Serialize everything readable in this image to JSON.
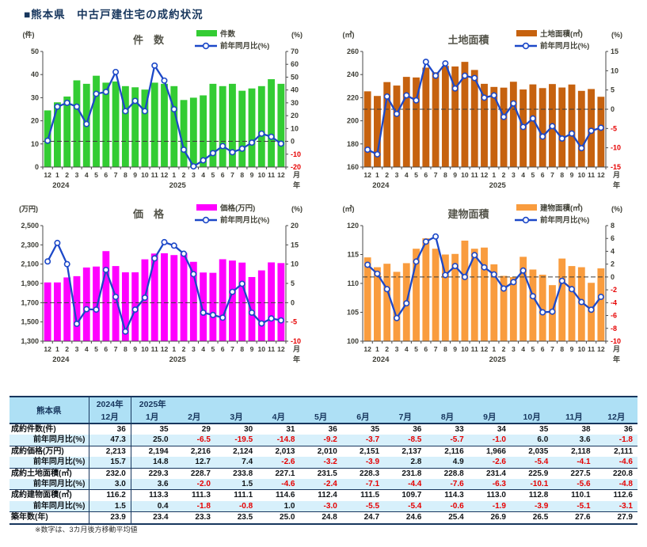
{
  "page": {
    "title": "■熊本県　中古戸建住宅の成約状況",
    "footnote": "※数字は、3カ月後方移動平均値"
  },
  "colors": {
    "navy_text": "#17365d",
    "negative_red": "#e60000",
    "line_blue": "#1c48c8",
    "axis_text": "#3d3d35",
    "chart_title": "#54544a",
    "header_bg": "#aee0f5",
    "shaded_row_bg": "#d7f0fb",
    "bar_count_green": "#33cc33",
    "bar_land_brown": "#c6620f",
    "bar_price_magenta": "#ff00ff",
    "bar_building_orange": "#f99c3e"
  },
  "axis": {
    "month_suffix": "月",
    "year_suffix": "年"
  },
  "months": [
    "12",
    "1",
    "2",
    "3",
    "4",
    "5",
    "6",
    "7",
    "8",
    "9",
    "10",
    "11",
    "12",
    "1",
    "2",
    "3",
    "4",
    "5",
    "6",
    "7",
    "8",
    "9",
    "10",
    "11",
    "12"
  ],
  "years": [
    {
      "index": 1,
      "label": "2024"
    },
    {
      "index": 13,
      "label": "2025"
    }
  ],
  "chart_data": [
    {
      "type": "bar",
      "combo": "bar+line",
      "title": "件　数",
      "unit_left": "(件)",
      "unit_right": "(%)",
      "legend": [
        "件数",
        "前年同月比(%)"
      ],
      "legend_position": "top-right",
      "bar_color": "#33cc33",
      "ylim_left": [
        0,
        50
      ],
      "yticks_left": [
        [
          0,
          "0"
        ],
        [
          10,
          "10"
        ],
        [
          20,
          "20"
        ],
        [
          30,
          "30"
        ],
        [
          40,
          "40"
        ],
        [
          50,
          "50"
        ]
      ],
      "ylim_right": [
        -20,
        70
      ],
      "yticks_right": [
        [
          -20,
          "-20"
        ],
        [
          -10,
          "-10"
        ],
        [
          0,
          "0"
        ],
        [
          10,
          "10"
        ],
        [
          20,
          "20"
        ],
        [
          30,
          "30"
        ],
        [
          40,
          "40"
        ],
        [
          50,
          "50"
        ],
        [
          60,
          "60"
        ],
        [
          70,
          "70"
        ]
      ],
      "bars": [
        24.5,
        28,
        30.5,
        37.5,
        36,
        39.5,
        36.5,
        37,
        35,
        34.5,
        33.5,
        36.5,
        36,
        35,
        29,
        30,
        31,
        36,
        35,
        36,
        33,
        34,
        35,
        38,
        36
      ],
      "line": [
        0.5,
        27,
        30,
        27,
        13.5,
        37,
        38.5,
        54,
        23.5,
        31.5,
        23.5,
        59,
        47.3,
        25.0,
        -6.5,
        -19.5,
        -14.8,
        -9.2,
        -3.7,
        -8.5,
        -5.7,
        -1.0,
        6.0,
        3.6,
        -1.8
      ]
    },
    {
      "type": "bar",
      "combo": "bar+line",
      "title": "土地面積",
      "unit_left": "(㎡)",
      "unit_right": "(%)",
      "legend": [
        "土地面積(㎡)",
        "前年同月比(%)"
      ],
      "legend_position": "top-right",
      "bar_color": "#c6620f",
      "ylim_left": [
        160,
        260
      ],
      "yticks_left": [
        [
          160,
          "160"
        ],
        [
          180,
          "180"
        ],
        [
          200,
          "200"
        ],
        [
          220,
          "220"
        ],
        [
          240,
          "240"
        ],
        [
          260,
          "260"
        ]
      ],
      "ylim_right": [
        -15,
        15
      ],
      "yticks_right": [
        [
          -15,
          "-15"
        ],
        [
          -10,
          "-10"
        ],
        [
          -5,
          "-5"
        ],
        [
          0,
          "0"
        ],
        [
          5,
          "5"
        ],
        [
          10,
          "10"
        ],
        [
          15,
          "15"
        ]
      ],
      "bars": [
        225.5,
        221.5,
        233.5,
        230.5,
        238,
        237.5,
        246,
        242,
        247.5,
        247,
        251,
        244,
        232.0,
        229.3,
        228.7,
        233.8,
        227.1,
        231.5,
        228.3,
        231.8,
        228.8,
        231.4,
        225.9,
        227.5,
        220.8
      ],
      "line": [
        -10.5,
        -11.7,
        3.3,
        -1.2,
        3.6,
        2.3,
        12.3,
        8.7,
        11.9,
        5.4,
        8.7,
        8.1,
        3.0,
        3.6,
        -2.0,
        1.5,
        -4.6,
        -2.4,
        -7.1,
        -4.4,
        -7.6,
        -6.3,
        -10.1,
        -5.6,
        -4.8
      ]
    },
    {
      "type": "bar",
      "combo": "bar+line",
      "title": "価　格",
      "unit_left": "(万円)",
      "unit_right": "(%)",
      "legend": [
        "価格(万円)",
        "前年同月比(%)"
      ],
      "legend_position": "top-right",
      "bar_color": "#ff00ff",
      "ylim_left": [
        1300,
        2500
      ],
      "yticks_left": [
        [
          1300,
          "1,300"
        ],
        [
          1500,
          "1,500"
        ],
        [
          1700,
          "1,700"
        ],
        [
          1900,
          "1,900"
        ],
        [
          2100,
          "2,100"
        ],
        [
          2300,
          "2,300"
        ],
        [
          2500,
          "2,500"
        ]
      ],
      "ylim_right": [
        -10,
        20
      ],
      "yticks_right": [
        [
          -10,
          "-10"
        ],
        [
          -5,
          "-5"
        ],
        [
          0,
          "0"
        ],
        [
          5,
          "5"
        ],
        [
          10,
          "10"
        ],
        [
          15,
          "15"
        ],
        [
          20,
          "20"
        ]
      ],
      "bars": [
        1910,
        1910,
        1962,
        1975,
        2065,
        2075,
        2235,
        2080,
        2015,
        2015,
        2150,
        2210,
        2213,
        2194,
        2216,
        2124,
        2013,
        2010,
        2151,
        2137,
        2116,
        1966,
        2035,
        2118,
        2111
      ],
      "line": [
        10.7,
        15.5,
        10,
        -5.5,
        -1.7,
        -1.8,
        8.5,
        1.5,
        -7.5,
        -1.8,
        1.3,
        11.5,
        15.7,
        14.8,
        12.7,
        7.4,
        -2.6,
        -3.2,
        -3.9,
        2.8,
        4.9,
        -2.6,
        -5.4,
        -4.1,
        -4.6
      ]
    },
    {
      "type": "bar",
      "combo": "bar+line",
      "title": "建物面積",
      "unit_left": "(㎡)",
      "unit_right": "(%)",
      "legend": [
        "建物面積(㎡)",
        "前年同月比(%)"
      ],
      "legend_position": "top-right",
      "bar_color": "#f99c3e",
      "ylim_left": [
        100,
        120
      ],
      "yticks_left": [
        [
          100,
          "100"
        ],
        [
          105,
          "105"
        ],
        [
          110,
          "110"
        ],
        [
          115,
          "115"
        ],
        [
          120,
          "120"
        ]
      ],
      "ylim_right": [
        -10,
        8
      ],
      "yticks_right": [
        [
          -10,
          "-10"
        ],
        [
          -8,
          "-8"
        ],
        [
          -6,
          "-6"
        ],
        [
          -4,
          "-4"
        ],
        [
          -2,
          "-2"
        ],
        [
          0,
          "0"
        ],
        [
          2,
          "2"
        ],
        [
          4,
          "4"
        ],
        [
          6,
          "6"
        ],
        [
          8,
          "8"
        ]
      ],
      "bars": [
        114.5,
        112.8,
        113.4,
        112.0,
        113.5,
        116.0,
        117.8,
        116.0,
        115.0,
        115.1,
        117.4,
        116.0,
        116.2,
        113.3,
        111.3,
        111.1,
        114.6,
        112.4,
        111.5,
        109.7,
        114.3,
        113.0,
        112.8,
        110.1,
        112.6
      ],
      "line": [
        1.9,
        0.5,
        -1.9,
        -6.4,
        -4.1,
        2.4,
        5.5,
        6.3,
        0.3,
        1.7,
        0,
        3.4,
        1.5,
        0.4,
        -1.8,
        -0.8,
        1.0,
        -3.0,
        -5.5,
        -5.4,
        -0.6,
        -1.9,
        -3.9,
        -5.1,
        -3.1
      ]
    }
  ],
  "table": {
    "corner_label": "熊本県",
    "year_group_1": "2024年",
    "year_group_2": "2025年",
    "columns": [
      "12月",
      "1月",
      "2月",
      "3月",
      "4月",
      "5月",
      "6月",
      "7月",
      "8月",
      "9月",
      "10月",
      "11月",
      "12月"
    ],
    "rows": [
      {
        "label": "成約件数(件)",
        "ratio": false,
        "shaded": false,
        "values": [
          "36",
          "35",
          "29",
          "30",
          "31",
          "36",
          "35",
          "36",
          "33",
          "34",
          "35",
          "38",
          "36"
        ]
      },
      {
        "label": "前年同月比(%)",
        "ratio": true,
        "shaded": true,
        "values": [
          "47.3",
          "25.0",
          "-6.5",
          "-19.5",
          "-14.8",
          "-9.2",
          "-3.7",
          "-8.5",
          "-5.7",
          "-1.0",
          "6.0",
          "3.6",
          "-1.8"
        ]
      },
      {
        "label": "成約価格(万円)",
        "ratio": false,
        "shaded": false,
        "values": [
          "2,213",
          "2,194",
          "2,216",
          "2,124",
          "2,013",
          "2,010",
          "2,151",
          "2,137",
          "2,116",
          "1,966",
          "2,035",
          "2,118",
          "2,111"
        ]
      },
      {
        "label": "前年同月比(%)",
        "ratio": true,
        "shaded": true,
        "values": [
          "15.7",
          "14.8",
          "12.7",
          "7.4",
          "-2.6",
          "-3.2",
          "-3.9",
          "2.8",
          "4.9",
          "-2.6",
          "-5.4",
          "-4.1",
          "-4.6"
        ]
      },
      {
        "label": "成約土地面積(㎡)",
        "ratio": false,
        "shaded": false,
        "values": [
          "232.0",
          "229.3",
          "228.7",
          "233.8",
          "227.1",
          "231.5",
          "228.3",
          "231.8",
          "228.8",
          "231.4",
          "225.9",
          "227.5",
          "220.8"
        ]
      },
      {
        "label": "前年同月比(%)",
        "ratio": true,
        "shaded": true,
        "values": [
          "3.0",
          "3.6",
          "-2.0",
          "1.5",
          "-4.6",
          "-2.4",
          "-7.1",
          "-4.4",
          "-7.6",
          "-6.3",
          "-10.1",
          "-5.6",
          "-4.8"
        ]
      },
      {
        "label": "成約建物面積(㎡)",
        "ratio": false,
        "shaded": false,
        "values": [
          "116.2",
          "113.3",
          "111.3",
          "111.1",
          "114.6",
          "112.4",
          "111.5",
          "109.7",
          "114.3",
          "113.0",
          "112.8",
          "110.1",
          "112.6"
        ]
      },
      {
        "label": "前年同月比(%)",
        "ratio": true,
        "shaded": true,
        "values": [
          "1.5",
          "0.4",
          "-1.8",
          "-0.8",
          "1.0",
          "-3.0",
          "-5.5",
          "-5.4",
          "-0.6",
          "-1.9",
          "-3.9",
          "-5.1",
          "-3.1"
        ]
      },
      {
        "label": "築年数(年)",
        "ratio": false,
        "shaded": false,
        "values": [
          "23.9",
          "23.4",
          "23.3",
          "23.5",
          "25.0",
          "24.8",
          "24.7",
          "24.6",
          "25.4",
          "26.9",
          "26.5",
          "27.6",
          "27.9"
        ]
      }
    ]
  }
}
